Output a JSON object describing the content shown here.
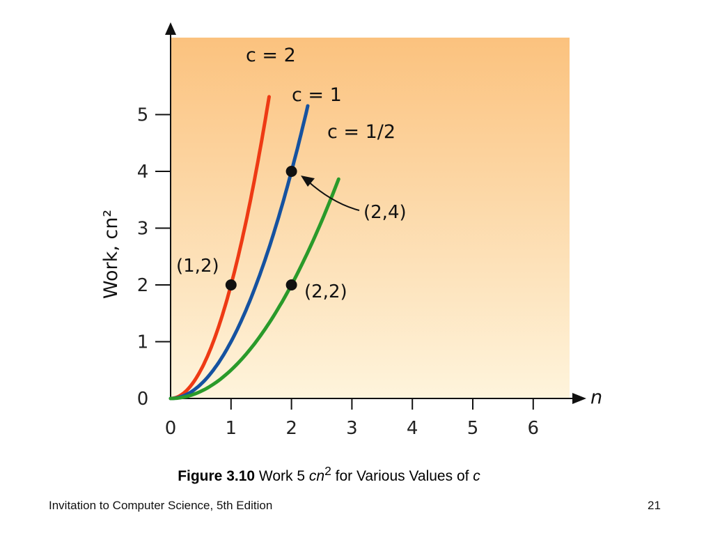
{
  "chart_data": {
    "type": "line",
    "xlabel": "n",
    "ylabel": "Work, cn²",
    "xlim": [
      0,
      6.6
    ],
    "ylim": [
      0,
      5.9
    ],
    "x_ticks": [
      "0",
      "1",
      "2",
      "3",
      "4",
      "5",
      "6"
    ],
    "y_ticks": [
      "0",
      "1",
      "2",
      "3",
      "4",
      "5"
    ],
    "series": [
      {
        "name": "c = 2",
        "c": 2,
        "x_max": 1.63,
        "color": "#ee3a14"
      },
      {
        "name": "c = 1",
        "c": 1,
        "x_max": 2.27,
        "color": "#1552a0"
      },
      {
        "name": "c = 1/2",
        "c": 0.5,
        "x_max": 2.78,
        "color": "#2a9a2a"
      }
    ],
    "points": [
      {
        "label": "(1,2)",
        "x": 1,
        "y": 2
      },
      {
        "label": "(2,4)",
        "x": 2,
        "y": 4
      },
      {
        "label": "(2,2)",
        "x": 2,
        "y": 2
      }
    ],
    "background_gradient": {
      "top": "#fbc27e",
      "bottom": "#fef4dc"
    }
  },
  "caption": {
    "prefix": "Figure 3.10",
    "text1": " Work 5 ",
    "var1": "cn",
    "sup": "2",
    "text2": " for Various Values of ",
    "var2": "c"
  },
  "footer": {
    "left": "Invitation to Computer Science, 5th Edition",
    "right": "21"
  }
}
